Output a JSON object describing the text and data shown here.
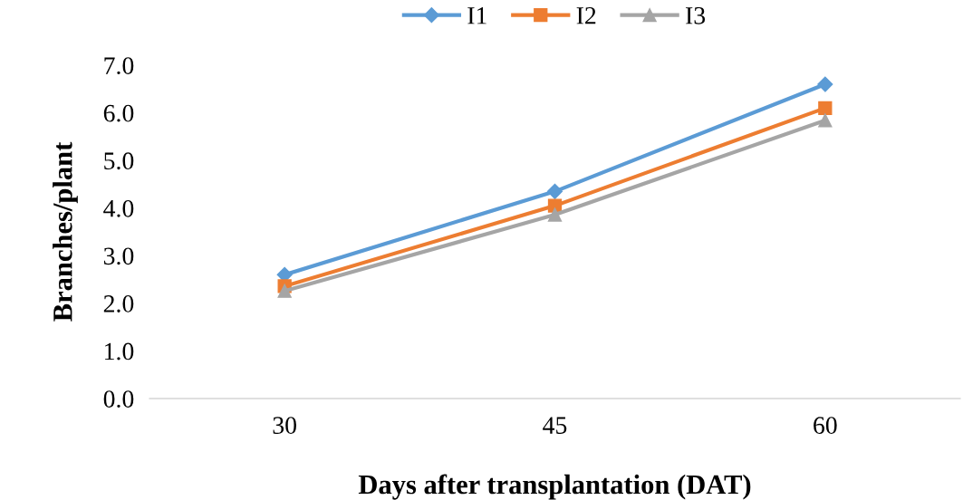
{
  "chart_data": {
    "type": "line",
    "xlabel": "Days after transplantation (DAT)",
    "ylabel": "Branches/plant",
    "categories": [
      "30",
      "45",
      "60"
    ],
    "series": [
      {
        "name": "I1",
        "color": "#5b9bd5",
        "marker": "diamond",
        "values": [
          2.6,
          4.35,
          6.6
        ]
      },
      {
        "name": "I2",
        "color": "#ed7d31",
        "marker": "square",
        "values": [
          2.36,
          4.05,
          6.1
        ]
      },
      {
        "name": "I3",
        "color": "#a5a5a5",
        "marker": "triangle",
        "values": [
          2.26,
          3.86,
          5.84
        ]
      }
    ],
    "ylim": [
      0,
      7
    ],
    "yticks": [
      {
        "value": 0,
        "label": "0.0"
      },
      {
        "value": 1,
        "label": "1.0"
      },
      {
        "value": 2,
        "label": "2.0"
      },
      {
        "value": 3,
        "label": "3.0"
      },
      {
        "value": 4,
        "label": "4.0"
      },
      {
        "value": 5,
        "label": "5.0"
      },
      {
        "value": 6,
        "label": "6.0"
      },
      {
        "value": 7,
        "label": "7.0"
      }
    ],
    "grid": false,
    "legend": "top",
    "line_style": "solid"
  }
}
